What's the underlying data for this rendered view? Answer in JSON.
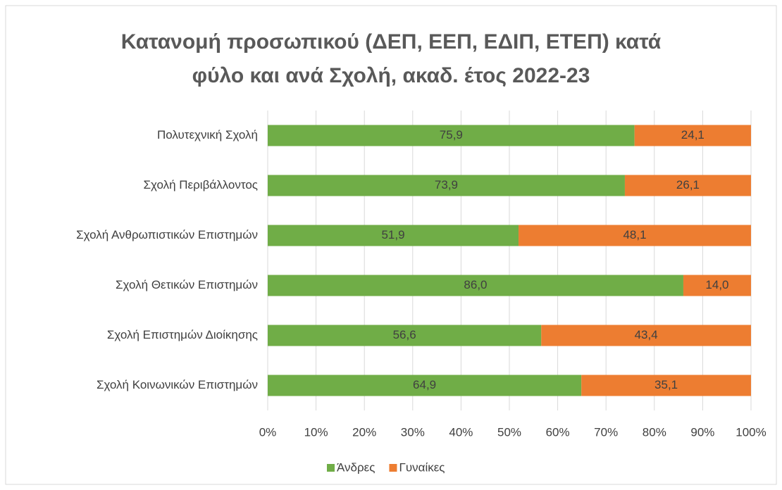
{
  "chart_data": {
    "type": "stacked_barh",
    "title": "Κατανομή προσωπικού (ΔΕΠ, ΕΕΠ, ΕΔΙΠ, ΕΤΕΠ) κατά φύλο και ανά Σχολή, ακαδ. έτος 2022-23",
    "categories": [
      "Πολυτεχνική Σχολή",
      "Σχολή Περιβάλλοντος",
      "Σχολή Ανθρωπιστικών Επιστημών",
      "Σχολή Θετικών Επιστημών",
      "Σχολή Επιστημών Διοίκησης",
      "Σχολή Κοινωνικών Επιστημών"
    ],
    "series": [
      {
        "name": "Άνδρες",
        "color": "#70ad47",
        "values": [
          75.9,
          73.9,
          51.9,
          86.0,
          56.6,
          64.9
        ],
        "value_labels": [
          "75,9",
          "73,9",
          "51,9",
          "86,0",
          "56,6",
          "64,9"
        ]
      },
      {
        "name": "Γυναίκες",
        "color": "#ed7d31",
        "values": [
          24.1,
          26.1,
          48.1,
          14.0,
          43.4,
          35.1
        ],
        "value_labels": [
          "24,1",
          "26,1",
          "48,1",
          "14,0",
          "43,4",
          "35,1"
        ]
      }
    ],
    "xlim": [
      0,
      100
    ],
    "xticks": [
      {
        "value": 0,
        "label": "0%"
      },
      {
        "value": 10,
        "label": "10%"
      },
      {
        "value": 20,
        "label": "20%"
      },
      {
        "value": 30,
        "label": "30%"
      },
      {
        "value": 40,
        "label": "40%"
      },
      {
        "value": 50,
        "label": "50%"
      },
      {
        "value": 60,
        "label": "60%"
      },
      {
        "value": 70,
        "label": "70%"
      },
      {
        "value": 80,
        "label": "80%"
      },
      {
        "value": 90,
        "label": "90%"
      },
      {
        "value": 100,
        "label": "100%"
      }
    ],
    "grid": true,
    "legend": "bottom"
  }
}
